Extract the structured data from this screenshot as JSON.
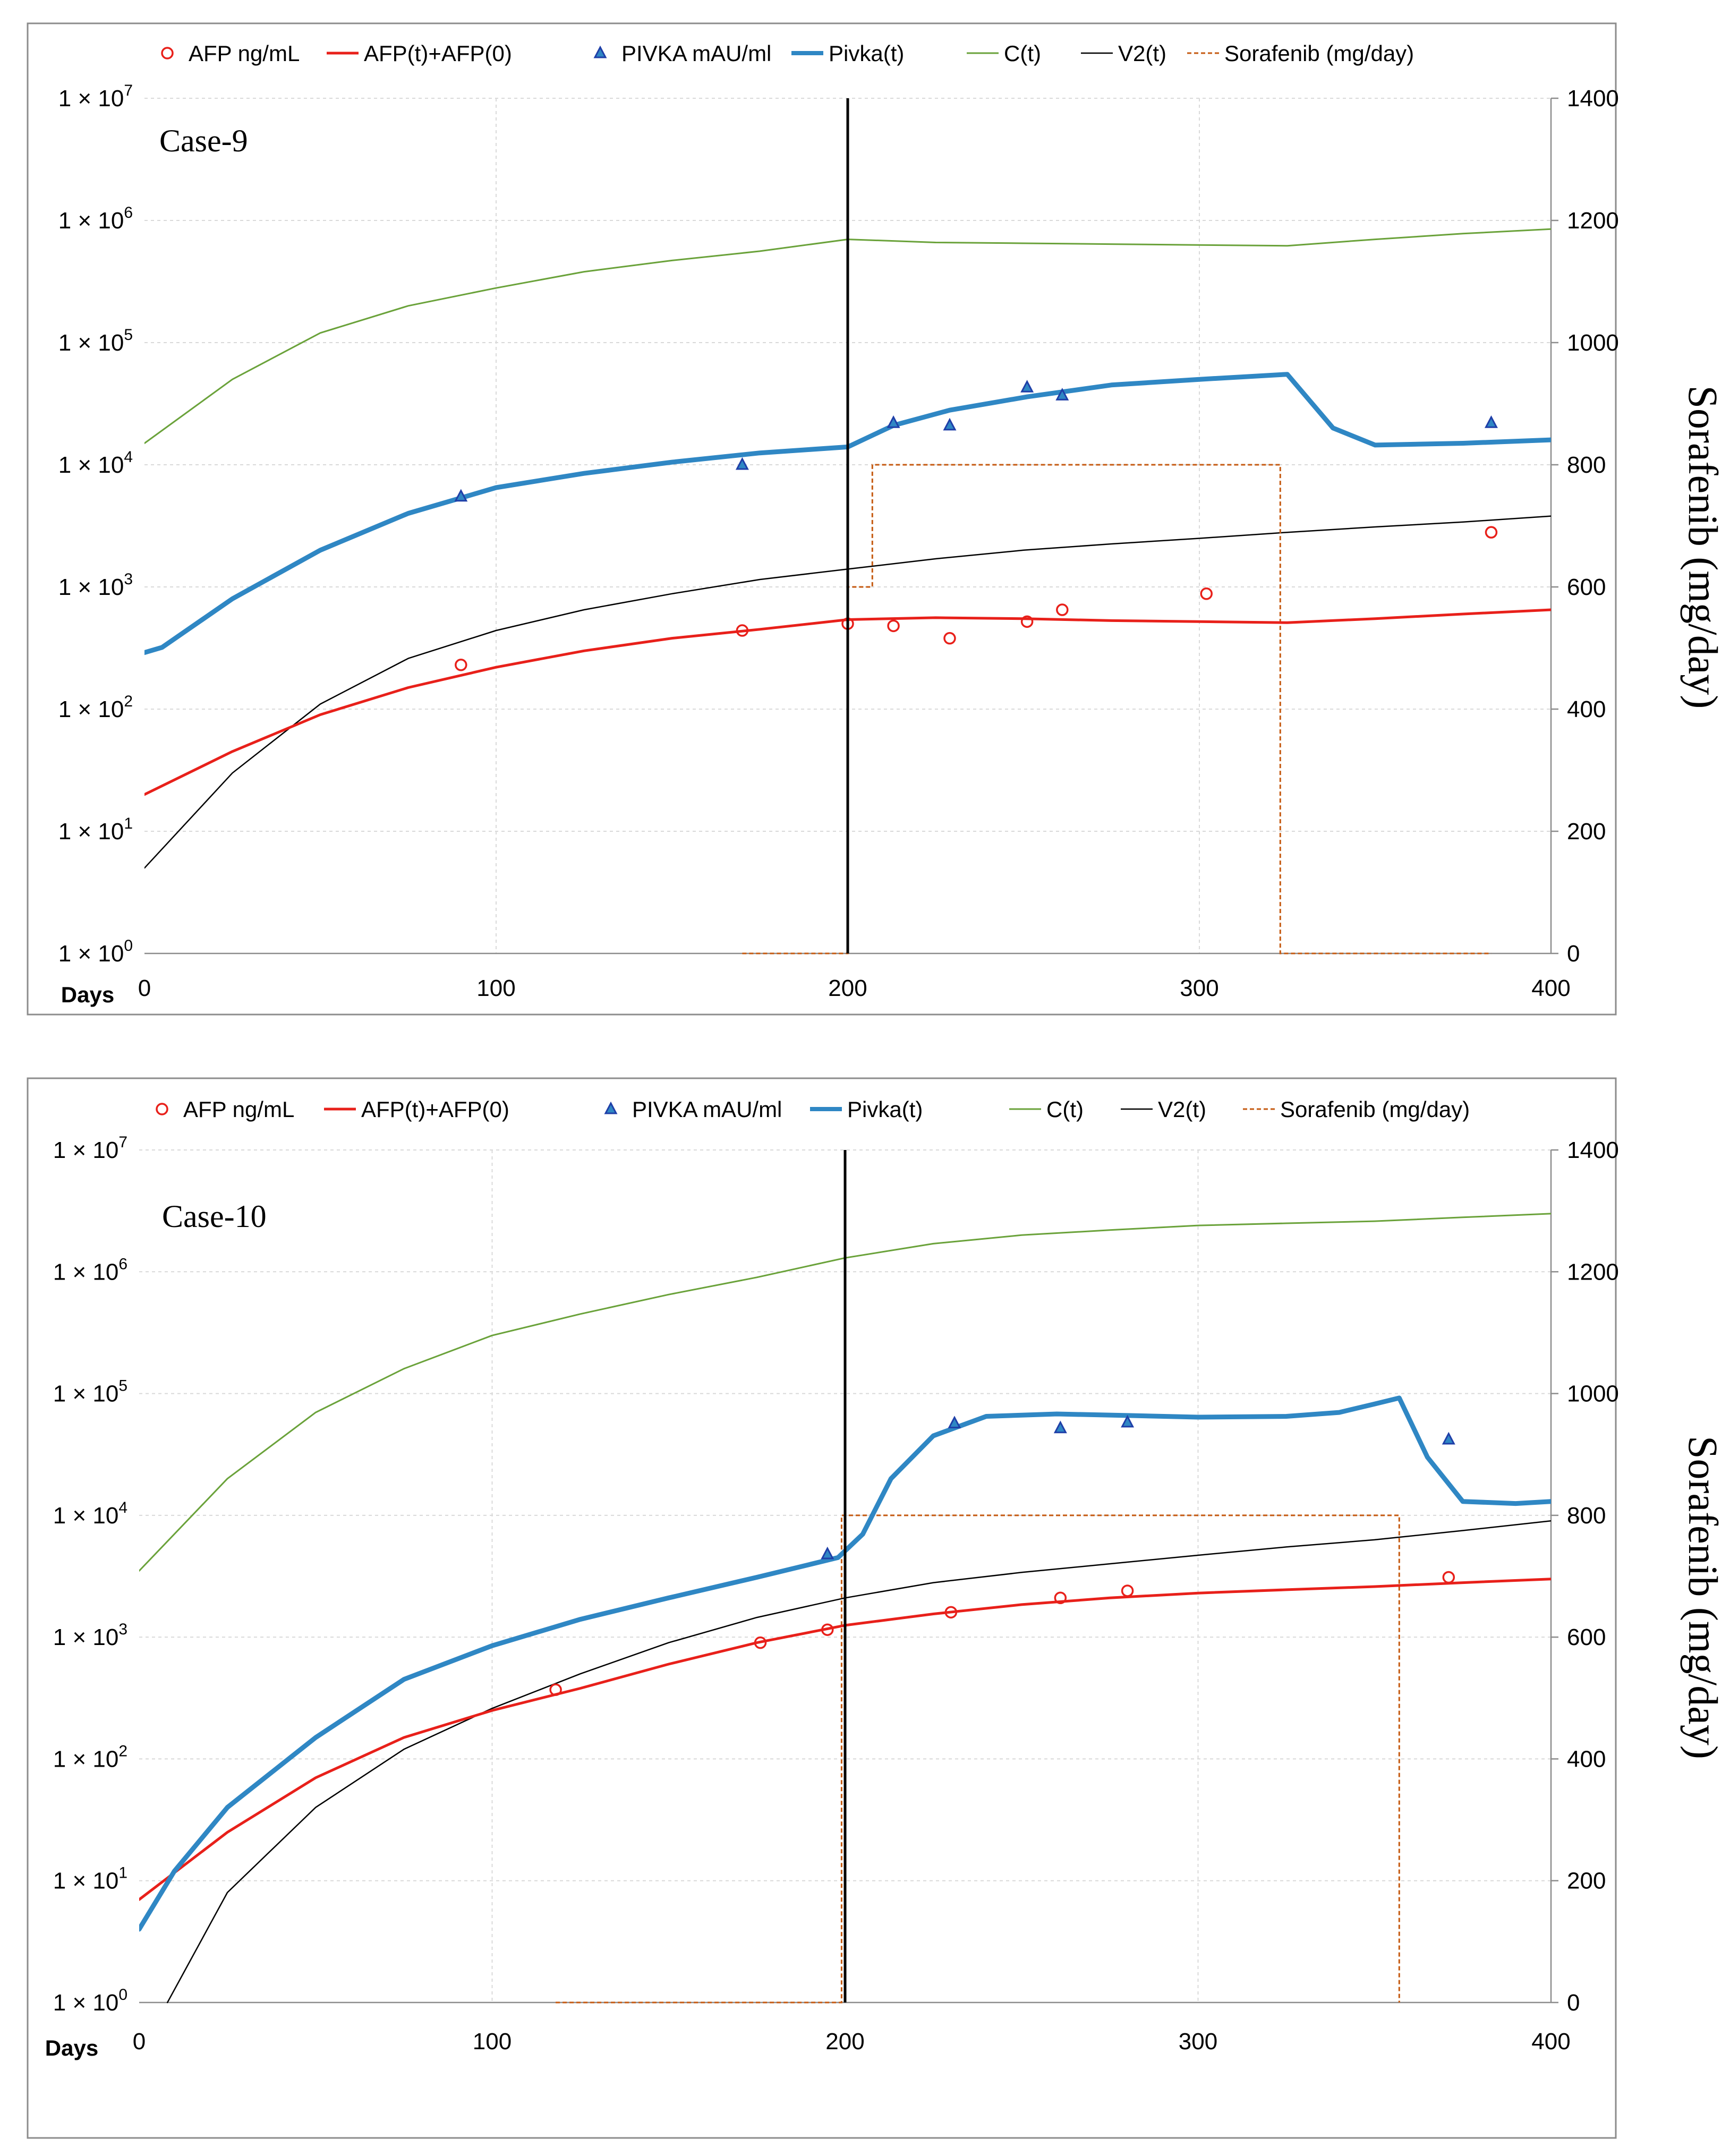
{
  "chart_data": [
    {
      "type": "line",
      "title": "Case-9",
      "xlabel": "Days",
      "ylabel": "",
      "y2label": "Sorafenib (mg/day)",
      "xlim": [
        0,
        400
      ],
      "xticks": [
        "0",
        "100",
        "200",
        "300",
        "400"
      ],
      "yscale": "log",
      "ylim": [
        1,
        10000000
      ],
      "yticks": [
        {
          "base": "1 × 10",
          "exp": "0"
        },
        {
          "base": "1 × 10",
          "exp": "1"
        },
        {
          "base": "1 × 10",
          "exp": "2"
        },
        {
          "base": "1 × 10",
          "exp": "3"
        },
        {
          "base": "1 × 10",
          "exp": "4"
        },
        {
          "base": "1 × 10",
          "exp": "5"
        },
        {
          "base": "1 × 10",
          "exp": "6"
        },
        {
          "base": "1 × 10",
          "exp": "7"
        }
      ],
      "y2lim": [
        0,
        1400
      ],
      "y2ticks": [
        "0",
        "200",
        "400",
        "600",
        "800",
        "1000",
        "1200",
        "1400"
      ],
      "vline_x": 200,
      "legend": [
        "AFP ng/mL",
        "AFP(t)+AFP(0)",
        "PIVKA mAU/ml",
        "Pivka(t)",
        "C(t)",
        "V2(t)",
        "Sorafenib (mg/day)"
      ],
      "colors": {
        "afp": "#e8201a",
        "pivka_marker": "#1f3fa8",
        "pivka_line": "#2f87c4",
        "ct": "#6aa23a",
        "v2": "#000000",
        "sorafenib": "#c55a11",
        "vline": "#000000"
      },
      "series": [
        {
          "name": "AFP ng/mL",
          "kind": "marker-circle",
          "x": [
            90,
            170,
            200,
            213,
            229,
            251,
            261,
            302,
            383
          ],
          "y": [
            230,
            440,
            500,
            480,
            380,
            520,
            650,
            880,
            2800
          ]
        },
        {
          "name": "AFP(t)+AFP(0)",
          "kind": "line",
          "x": [
            0,
            25,
            50,
            75,
            100,
            125,
            150,
            175,
            200,
            225,
            250,
            275,
            300,
            325,
            350,
            375,
            400
          ],
          "y": [
            20,
            45,
            90,
            150,
            220,
            300,
            380,
            450,
            540,
            560,
            550,
            530,
            520,
            510,
            550,
            600,
            650
          ]
        },
        {
          "name": "PIVKA mAU/ml",
          "kind": "marker-triangle",
          "x": [
            90,
            170,
            213,
            229,
            251,
            261,
            383
          ],
          "y": [
            5500,
            10000,
            22000,
            21000,
            43000,
            37000,
            22000
          ]
        },
        {
          "name": "Pivka(t)",
          "kind": "line",
          "x": [
            0,
            5,
            25,
            50,
            75,
            100,
            125,
            150,
            175,
            200,
            213,
            229,
            251,
            275,
            300,
            325,
            338,
            350,
            375,
            400
          ],
          "y": [
            290,
            320,
            800,
            2000,
            4000,
            6500,
            8500,
            10500,
            12500,
            14000,
            21000,
            28000,
            36000,
            45000,
            50000,
            55000,
            20000,
            14500,
            15000,
            16000
          ]
        },
        {
          "name": "C(t)",
          "kind": "line",
          "x": [
            0,
            25,
            50,
            75,
            100,
            125,
            150,
            175,
            200,
            225,
            250,
            275,
            300,
            325,
            350,
            375,
            400
          ],
          "y": [
            15000,
            50000,
            120000,
            200000,
            280000,
            380000,
            470000,
            560000,
            700000,
            660000,
            650000,
            640000,
            630000,
            620000,
            700000,
            780000,
            850000
          ]
        },
        {
          "name": "V2(t)",
          "kind": "line",
          "x": [
            0,
            25,
            50,
            75,
            100,
            125,
            150,
            175,
            200,
            225,
            250,
            275,
            300,
            325,
            350,
            375,
            400
          ],
          "y": [
            5,
            30,
            110,
            260,
            440,
            650,
            880,
            1150,
            1400,
            1700,
            2000,
            2250,
            2500,
            2800,
            3100,
            3400,
            3800
          ]
        },
        {
          "name": "Sorafenib (mg/day)",
          "kind": "step-dashed",
          "axis": "y2",
          "x": [
            170,
            200,
            200,
            207,
            207,
            323,
            323,
            383
          ],
          "y": [
            0,
            0,
            600,
            600,
            800,
            800,
            0,
            0
          ]
        }
      ]
    },
    {
      "type": "line",
      "title": "Case-10",
      "xlabel": "Days",
      "ylabel": "",
      "y2label": "Sorafenib (mg/day)",
      "xlim": [
        0,
        400
      ],
      "xticks": [
        "0",
        "100",
        "200",
        "300",
        "400"
      ],
      "yscale": "log",
      "ylim": [
        1,
        10000000
      ],
      "yticks": [
        {
          "base": "1 × 10",
          "exp": "0"
        },
        {
          "base": "1 × 10",
          "exp": "1"
        },
        {
          "base": "1 × 10",
          "exp": "2"
        },
        {
          "base": "1 × 10",
          "exp": "3"
        },
        {
          "base": "1 × 10",
          "exp": "4"
        },
        {
          "base": "1 × 10",
          "exp": "5"
        },
        {
          "base": "1 × 10",
          "exp": "6"
        },
        {
          "base": "1 × 10",
          "exp": "7"
        }
      ],
      "y2lim": [
        0,
        1400
      ],
      "y2ticks": [
        "0",
        "200",
        "400",
        "600",
        "800",
        "1000",
        "1200",
        "1400"
      ],
      "vline_x": 200,
      "legend": [
        "AFP ng/mL",
        "AFP(t)+AFP(0)",
        "PIVKA mAU/ml",
        "Pivka(t)",
        "C(t)",
        "V2(t)",
        "Sorafenib (mg/day)"
      ],
      "colors": {
        "afp": "#e8201a",
        "pivka_marker": "#1f3fa8",
        "pivka_line": "#2f87c4",
        "ct": "#6aa23a",
        "v2": "#000000",
        "sorafenib": "#c55a11",
        "vline": "#000000"
      },
      "series": [
        {
          "name": "AFP ng/mL",
          "kind": "marker-circle",
          "x": [
            118,
            176,
            195,
            230,
            261,
            280,
            371
          ],
          "y": [
            370,
            900,
            1150,
            1600,
            2100,
            2400,
            3100
          ]
        },
        {
          "name": "AFP(t)+AFP(0)",
          "kind": "line",
          "x": [
            0,
            25,
            50,
            75,
            100,
            125,
            150,
            175,
            200,
            225,
            250,
            275,
            300,
            325,
            350,
            375,
            400
          ],
          "y": [
            7,
            25,
            70,
            150,
            250,
            380,
            600,
            900,
            1250,
            1550,
            1850,
            2100,
            2300,
            2450,
            2600,
            2800,
            3000
          ]
        },
        {
          "name": "PIVKA mAU/ml",
          "kind": "marker-triangle",
          "x": [
            195,
            231,
            261,
            280,
            371
          ],
          "y": [
            4800,
            57000,
            52000,
            58000,
            42000
          ]
        },
        {
          "name": "Pivka(t)",
          "kind": "line",
          "x": [
            0,
            10,
            25,
            50,
            75,
            100,
            125,
            150,
            175,
            198,
            205,
            213,
            225,
            240,
            260,
            280,
            300,
            325,
            340,
            350,
            357,
            365,
            375,
            390,
            400
          ],
          "y": [
            4,
            12,
            40,
            150,
            450,
            850,
            1400,
            2100,
            3100,
            4500,
            7000,
            20000,
            45000,
            65000,
            68000,
            66000,
            64000,
            65000,
            70000,
            82000,
            92000,
            30000,
            13000,
            12500,
            13000
          ]
        },
        {
          "name": "C(t)",
          "kind": "line",
          "x": [
            0,
            25,
            50,
            75,
            100,
            125,
            150,
            175,
            200,
            225,
            250,
            275,
            300,
            325,
            350,
            375,
            400
          ],
          "y": [
            3500,
            20000,
            70000,
            160000,
            300000,
            450000,
            650000,
            900000,
            1300000,
            1700000,
            2000000,
            2200000,
            2400000,
            2500000,
            2600000,
            2800000,
            3000000
          ]
        },
        {
          "name": "V2(t)",
          "kind": "line",
          "x": [
            8,
            25,
            50,
            75,
            100,
            125,
            150,
            175,
            200,
            225,
            250,
            275,
            300,
            325,
            350,
            375,
            400
          ],
          "y": [
            1,
            8,
            40,
            120,
            260,
            500,
            900,
            1450,
            2100,
            2800,
            3400,
            4000,
            4700,
            5500,
            6300,
            7500,
            9000
          ]
        },
        {
          "name": "Sorafenib (mg/day)",
          "kind": "step-dashed",
          "axis": "y2",
          "x": [
            118,
            199,
            199,
            357,
            357
          ],
          "y": [
            0,
            0,
            800,
            800,
            0
          ]
        }
      ]
    }
  ]
}
